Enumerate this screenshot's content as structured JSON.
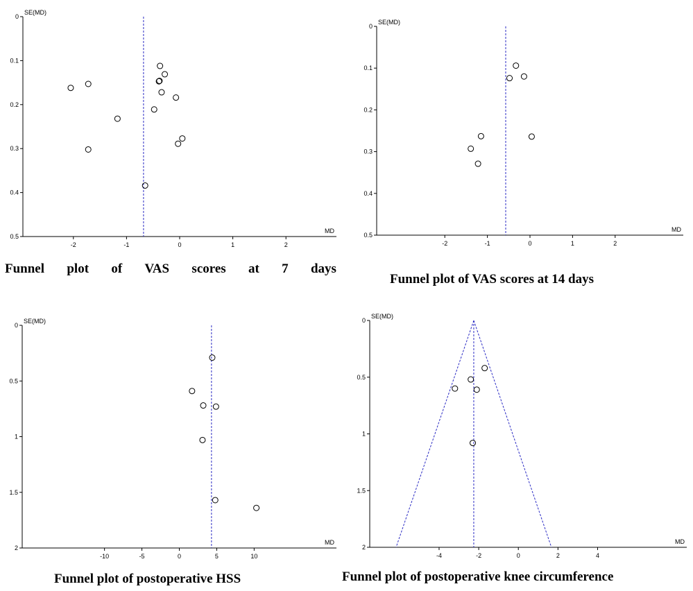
{
  "chart_data": [
    {
      "type": "scatter",
      "subtype": "funnel",
      "title": "Funnel plot of VAS scores at 7 days",
      "xlabel": "MD",
      "ylabel": "SE(MD)",
      "y_reversed": true,
      "xlim": [
        -2.95,
        2.95
      ],
      "ylim": [
        0,
        0.5
      ],
      "xticks": [
        -2,
        -1,
        0,
        1,
        2
      ],
      "yticks": [
        0,
        0.1,
        0.2,
        0.3,
        0.4,
        0.5
      ],
      "ytick_labels": [
        "0",
        "0.1",
        "0.2",
        "0.3",
        "0.4",
        "0.5"
      ],
      "pooled_line": -0.68,
      "points": [
        {
          "x": -2.05,
          "y": 0.162
        },
        {
          "x": -1.72,
          "y": 0.153
        },
        {
          "x": -1.72,
          "y": 0.302
        },
        {
          "x": -1.17,
          "y": 0.232
        },
        {
          "x": -0.48,
          "y": 0.211
        },
        {
          "x": -0.39,
          "y": 0.147
        },
        {
          "x": -0.38,
          "y": 0.146
        },
        {
          "x": -0.37,
          "y": 0.112
        },
        {
          "x": -0.34,
          "y": 0.172
        },
        {
          "x": -0.28,
          "y": 0.131
        },
        {
          "x": -0.07,
          "y": 0.184
        },
        {
          "x": -0.03,
          "y": 0.289
        },
        {
          "x": 0.05,
          "y": 0.277
        },
        {
          "x": -0.65,
          "y": 0.384
        }
      ]
    },
    {
      "type": "scatter",
      "subtype": "funnel",
      "title": "Funnel plot of VAS scores at 14 days",
      "xlabel": "MD",
      "ylabel": "SE(MD)",
      "y_reversed": true,
      "xlim": [
        -3.6,
        3.6
      ],
      "ylim": [
        0,
        0.5
      ],
      "xticks": [
        -2,
        -1,
        0,
        1,
        2
      ],
      "yticks": [
        0,
        0.1,
        0.2,
        0.3,
        0.4,
        0.5
      ],
      "ytick_labels": [
        "0",
        "0.1",
        "0.2",
        "0.3",
        "0.4",
        "0.5"
      ],
      "pooled_line": -0.57,
      "points": [
        {
          "x": -0.33,
          "y": 0.094
        },
        {
          "x": -0.48,
          "y": 0.124
        },
        {
          "x": -0.14,
          "y": 0.12
        },
        {
          "x": -1.15,
          "y": 0.263
        },
        {
          "x": -1.39,
          "y": 0.293
        },
        {
          "x": -1.22,
          "y": 0.329
        },
        {
          "x": 0.04,
          "y": 0.264
        }
      ]
    },
    {
      "type": "scatter",
      "subtype": "funnel",
      "title": "Funnel plot of postoperative HSS",
      "xlabel": "MD",
      "ylabel": "SE(MD)",
      "y_reversed": true,
      "xlim": [
        -21,
        21
      ],
      "ylim": [
        0,
        2
      ],
      "xticks": [
        -10,
        -5,
        0,
        5,
        10
      ],
      "yticks": [
        0,
        0.5,
        1,
        1.5,
        2
      ],
      "ytick_labels": [
        "0",
        "0.5",
        "1",
        "1.5",
        "2"
      ],
      "pooled_line": 4.3,
      "points": [
        {
          "x": 4.4,
          "y": 0.29
        },
        {
          "x": 1.7,
          "y": 0.59
        },
        {
          "x": 3.2,
          "y": 0.72
        },
        {
          "x": 4.9,
          "y": 0.73
        },
        {
          "x": 3.1,
          "y": 1.03
        },
        {
          "x": 4.8,
          "y": 1.57
        },
        {
          "x": 10.3,
          "y": 1.64
        }
      ]
    },
    {
      "type": "scatter",
      "subtype": "funnel",
      "title": "Funnel plot of postoperative knee circumference",
      "xlabel": "MD",
      "ylabel": "SE(MD)",
      "y_reversed": true,
      "xlim": [
        -7.5,
        8.5
      ],
      "ylim": [
        0,
        2
      ],
      "xticks": [
        -4,
        -2,
        0,
        2,
        4
      ],
      "yticks": [
        0,
        0.5,
        1,
        1.5,
        2
      ],
      "ytick_labels": [
        "0",
        "0.5",
        "1",
        "1.5",
        "2"
      ],
      "pooled_line": -2.25,
      "funnel_limits": true,
      "points": [
        {
          "x": -1.7,
          "y": 0.42
        },
        {
          "x": -2.4,
          "y": 0.52
        },
        {
          "x": -3.2,
          "y": 0.6
        },
        {
          "x": -2.1,
          "y": 0.61
        },
        {
          "x": -2.3,
          "y": 1.08
        }
      ]
    }
  ]
}
